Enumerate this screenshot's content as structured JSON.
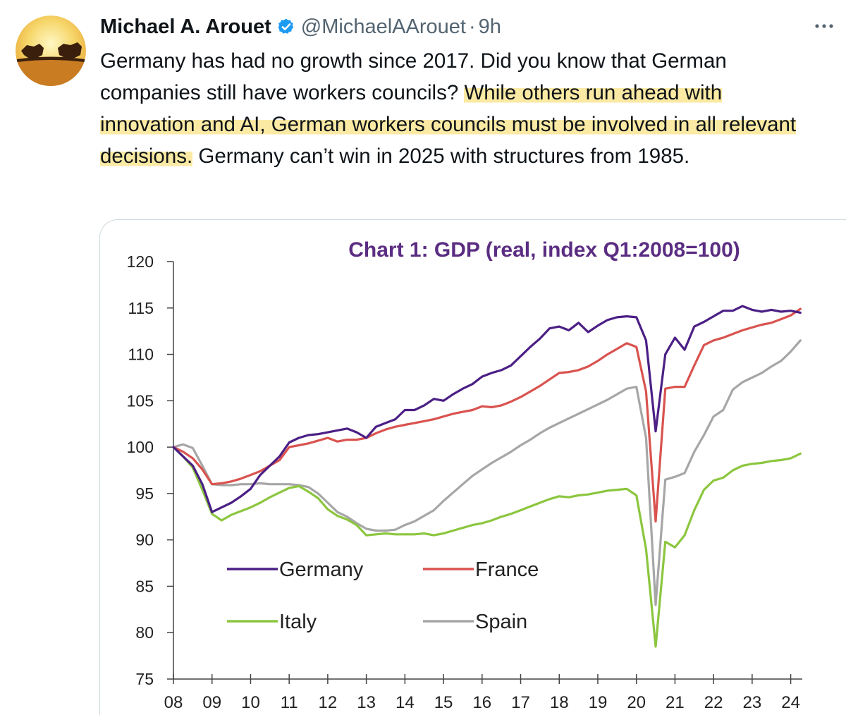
{
  "tweet": {
    "author_name": "Michael A. Arouet",
    "handle": "@MichaelAArouet",
    "separator": "·",
    "time": "9h",
    "text_part1": "Germany has had no growth since 2017. Did you know that German companies still have workers councils? ",
    "text_highlight": "While others run ahead with innovation and AI, German workers councils must be involved in all relevant decisions.",
    "text_part2": " Germany can’t win in 2025 with structures from 1985."
  },
  "icons": {
    "avatar": "bull-and-bear-avatar",
    "verified": "verified-badge-icon",
    "more": "more-options-icon"
  },
  "colors": {
    "verified": "#1d9bf0",
    "highlight": "#fbeaa4",
    "chart_title": "#5b2d82"
  },
  "chart_data": {
    "type": "line",
    "title": "Chart 1: GDP (real, index Q1:2008=100)",
    "xlabel": "",
    "ylabel": "",
    "ylim": [
      75,
      120
    ],
    "yticks": [
      120,
      115,
      110,
      105,
      100,
      95,
      90,
      85,
      80,
      75
    ],
    "xticks": [
      "08",
      "09",
      "10",
      "11",
      "12",
      "13",
      "14",
      "15",
      "16",
      "17",
      "18",
      "19",
      "20",
      "21",
      "22",
      "23",
      "24"
    ],
    "grid": false,
    "legend": "inside-lower-left",
    "series": [
      {
        "name": "Germany",
        "color": "#4b1f85",
        "points": [
          [
            2008.0,
            100
          ],
          [
            2008.25,
            99
          ],
          [
            2008.5,
            98
          ],
          [
            2008.75,
            96
          ],
          [
            2009.0,
            93
          ],
          [
            2009.25,
            93.5
          ],
          [
            2009.5,
            94
          ],
          [
            2009.75,
            94.7
          ],
          [
            2010.0,
            95.5
          ],
          [
            2010.25,
            97
          ],
          [
            2010.5,
            98
          ],
          [
            2010.75,
            99
          ],
          [
            2011.0,
            100.5
          ],
          [
            2011.25,
            101
          ],
          [
            2011.5,
            101.3
          ],
          [
            2011.75,
            101.4
          ],
          [
            2012.0,
            101.6
          ],
          [
            2012.25,
            101.8
          ],
          [
            2012.5,
            102
          ],
          [
            2012.75,
            101.6
          ],
          [
            2013.0,
            101
          ],
          [
            2013.25,
            102.2
          ],
          [
            2013.5,
            102.6
          ],
          [
            2013.75,
            103
          ],
          [
            2014.0,
            104
          ],
          [
            2014.25,
            104
          ],
          [
            2014.5,
            104.5
          ],
          [
            2014.75,
            105.2
          ],
          [
            2015.0,
            105
          ],
          [
            2015.25,
            105.7
          ],
          [
            2015.5,
            106.3
          ],
          [
            2015.75,
            106.8
          ],
          [
            2016.0,
            107.6
          ],
          [
            2016.25,
            108
          ],
          [
            2016.5,
            108.3
          ],
          [
            2016.75,
            108.8
          ],
          [
            2017.0,
            109.8
          ],
          [
            2017.25,
            110.8
          ],
          [
            2017.5,
            111.7
          ],
          [
            2017.75,
            112.8
          ],
          [
            2018.0,
            113
          ],
          [
            2018.25,
            112.6
          ],
          [
            2018.5,
            113.4
          ],
          [
            2018.75,
            112.4
          ],
          [
            2019.0,
            113.1
          ],
          [
            2019.25,
            113.7
          ],
          [
            2019.5,
            114
          ],
          [
            2019.75,
            114.1
          ],
          [
            2020.0,
            114
          ],
          [
            2020.25,
            111.5
          ],
          [
            2020.5,
            101.7
          ],
          [
            2020.75,
            110
          ],
          [
            2021.0,
            111.8
          ],
          [
            2021.25,
            110.5
          ],
          [
            2021.5,
            113
          ],
          [
            2021.75,
            113.5
          ],
          [
            2022.0,
            114.1
          ],
          [
            2022.25,
            114.7
          ],
          [
            2022.5,
            114.7
          ],
          [
            2022.75,
            115.2
          ],
          [
            2023.0,
            114.8
          ],
          [
            2023.25,
            114.6
          ],
          [
            2023.5,
            114.8
          ],
          [
            2023.75,
            114.6
          ],
          [
            2024.0,
            114.7
          ],
          [
            2024.25,
            114.5
          ]
        ]
      },
      {
        "name": "France",
        "color": "#d9534f",
        "points": [
          [
            2008.0,
            100
          ],
          [
            2008.25,
            99.5
          ],
          [
            2008.5,
            98.8
          ],
          [
            2008.75,
            97.6
          ],
          [
            2009.0,
            96
          ],
          [
            2009.25,
            96.1
          ],
          [
            2009.5,
            96.3
          ],
          [
            2009.75,
            96.6
          ],
          [
            2010.0,
            97
          ],
          [
            2010.25,
            97.4
          ],
          [
            2010.5,
            98
          ],
          [
            2010.75,
            98.6
          ],
          [
            2011.0,
            100
          ],
          [
            2011.25,
            100.2
          ],
          [
            2011.5,
            100.4
          ],
          [
            2011.75,
            100.7
          ],
          [
            2012.0,
            101
          ],
          [
            2012.25,
            100.6
          ],
          [
            2012.5,
            100.8
          ],
          [
            2012.75,
            100.8
          ],
          [
            2013.0,
            101
          ],
          [
            2013.25,
            101.5
          ],
          [
            2013.5,
            101.9
          ],
          [
            2013.75,
            102.2
          ],
          [
            2014.0,
            102.4
          ],
          [
            2014.25,
            102.6
          ],
          [
            2014.5,
            102.8
          ],
          [
            2014.75,
            103
          ],
          [
            2015.0,
            103.3
          ],
          [
            2015.25,
            103.6
          ],
          [
            2015.5,
            103.8
          ],
          [
            2015.75,
            104
          ],
          [
            2016.0,
            104.4
          ],
          [
            2016.25,
            104.3
          ],
          [
            2016.5,
            104.5
          ],
          [
            2016.75,
            104.9
          ],
          [
            2017.0,
            105.4
          ],
          [
            2017.25,
            106
          ],
          [
            2017.5,
            106.6
          ],
          [
            2017.75,
            107.3
          ],
          [
            2018.0,
            108
          ],
          [
            2018.25,
            108.1
          ],
          [
            2018.5,
            108.3
          ],
          [
            2018.75,
            108.7
          ],
          [
            2019.0,
            109.3
          ],
          [
            2019.25,
            110
          ],
          [
            2019.5,
            110.6
          ],
          [
            2019.75,
            111.2
          ],
          [
            2020.0,
            110.8
          ],
          [
            2020.25,
            106
          ],
          [
            2020.5,
            92
          ],
          [
            2020.75,
            106.3
          ],
          [
            2021.0,
            106.5
          ],
          [
            2021.25,
            106.5
          ],
          [
            2021.5,
            108.8
          ],
          [
            2021.75,
            111
          ],
          [
            2022.0,
            111.5
          ],
          [
            2022.25,
            111.8
          ],
          [
            2022.5,
            112.2
          ],
          [
            2022.75,
            112.6
          ],
          [
            2023.0,
            112.9
          ],
          [
            2023.25,
            113.2
          ],
          [
            2023.5,
            113.4
          ],
          [
            2023.75,
            113.8
          ],
          [
            2024.0,
            114.2
          ],
          [
            2024.25,
            114.9
          ]
        ]
      },
      {
        "name": "Italy",
        "color": "#8cc63f",
        "points": [
          [
            2008.0,
            100
          ],
          [
            2008.25,
            99
          ],
          [
            2008.5,
            97.8
          ],
          [
            2008.75,
            95.4
          ],
          [
            2009.0,
            92.8
          ],
          [
            2009.25,
            92.1
          ],
          [
            2009.5,
            92.7
          ],
          [
            2009.75,
            93.1
          ],
          [
            2010.0,
            93.5
          ],
          [
            2010.25,
            94
          ],
          [
            2010.5,
            94.6
          ],
          [
            2010.75,
            95.1
          ],
          [
            2011.0,
            95.6
          ],
          [
            2011.25,
            95.8
          ],
          [
            2011.5,
            95.2
          ],
          [
            2011.75,
            94.5
          ],
          [
            2012.0,
            93.3
          ],
          [
            2012.25,
            92.6
          ],
          [
            2012.5,
            92.2
          ],
          [
            2012.75,
            91.6
          ],
          [
            2013.0,
            90.5
          ],
          [
            2013.25,
            90.6
          ],
          [
            2013.5,
            90.7
          ],
          [
            2013.75,
            90.6
          ],
          [
            2014.0,
            90.6
          ],
          [
            2014.25,
            90.6
          ],
          [
            2014.5,
            90.7
          ],
          [
            2014.75,
            90.5
          ],
          [
            2015.0,
            90.7
          ],
          [
            2015.25,
            91
          ],
          [
            2015.5,
            91.3
          ],
          [
            2015.75,
            91.6
          ],
          [
            2016.0,
            91.8
          ],
          [
            2016.25,
            92.1
          ],
          [
            2016.5,
            92.5
          ],
          [
            2016.75,
            92.8
          ],
          [
            2017.0,
            93.2
          ],
          [
            2017.25,
            93.6
          ],
          [
            2017.5,
            94
          ],
          [
            2017.75,
            94.4
          ],
          [
            2018.0,
            94.7
          ],
          [
            2018.25,
            94.6
          ],
          [
            2018.5,
            94.8
          ],
          [
            2018.75,
            94.9
          ],
          [
            2019.0,
            95.1
          ],
          [
            2019.25,
            95.3
          ],
          [
            2019.5,
            95.4
          ],
          [
            2019.75,
            95.5
          ],
          [
            2020.0,
            94.8
          ],
          [
            2020.25,
            89
          ],
          [
            2020.5,
            78.5
          ],
          [
            2020.75,
            89.8
          ],
          [
            2021.0,
            89.2
          ],
          [
            2021.25,
            90.5
          ],
          [
            2021.5,
            93.2
          ],
          [
            2021.75,
            95.4
          ],
          [
            2022.0,
            96.4
          ],
          [
            2022.25,
            96.7
          ],
          [
            2022.5,
            97.5
          ],
          [
            2022.75,
            98
          ],
          [
            2023.0,
            98.2
          ],
          [
            2023.25,
            98.3
          ],
          [
            2023.5,
            98.5
          ],
          [
            2023.75,
            98.6
          ],
          [
            2024.0,
            98.8
          ],
          [
            2024.25,
            99.3
          ]
        ]
      },
      {
        "name": "Spain",
        "color": "#a6a6a6",
        "points": [
          [
            2008.0,
            100
          ],
          [
            2008.25,
            100.3
          ],
          [
            2008.5,
            99.9
          ],
          [
            2008.75,
            98
          ],
          [
            2009.0,
            96
          ],
          [
            2009.25,
            95.9
          ],
          [
            2009.5,
            95.9
          ],
          [
            2009.75,
            96
          ],
          [
            2010.0,
            96
          ],
          [
            2010.25,
            96.1
          ],
          [
            2010.5,
            96
          ],
          [
            2010.75,
            96
          ],
          [
            2011.0,
            96
          ],
          [
            2011.25,
            95.9
          ],
          [
            2011.5,
            95.7
          ],
          [
            2011.75,
            95
          ],
          [
            2012.0,
            94
          ],
          [
            2012.25,
            93
          ],
          [
            2012.5,
            92.5
          ],
          [
            2012.75,
            91.8
          ],
          [
            2013.0,
            91.2
          ],
          [
            2013.25,
            91
          ],
          [
            2013.5,
            91
          ],
          [
            2013.75,
            91.1
          ],
          [
            2014.0,
            91.6
          ],
          [
            2014.25,
            92
          ],
          [
            2014.5,
            92.6
          ],
          [
            2014.75,
            93.2
          ],
          [
            2015.0,
            94.2
          ],
          [
            2015.25,
            95.1
          ],
          [
            2015.5,
            96
          ],
          [
            2015.75,
            96.9
          ],
          [
            2016.0,
            97.6
          ],
          [
            2016.25,
            98.3
          ],
          [
            2016.5,
            98.9
          ],
          [
            2016.75,
            99.5
          ],
          [
            2017.0,
            100.2
          ],
          [
            2017.25,
            100.8
          ],
          [
            2017.5,
            101.5
          ],
          [
            2017.75,
            102.1
          ],
          [
            2018.0,
            102.6
          ],
          [
            2018.25,
            103.1
          ],
          [
            2018.5,
            103.6
          ],
          [
            2018.75,
            104.1
          ],
          [
            2019.0,
            104.6
          ],
          [
            2019.25,
            105.1
          ],
          [
            2019.5,
            105.7
          ],
          [
            2019.75,
            106.3
          ],
          [
            2020.0,
            106.5
          ],
          [
            2020.25,
            101
          ],
          [
            2020.5,
            83
          ],
          [
            2020.75,
            96.5
          ],
          [
            2021.0,
            96.8
          ],
          [
            2021.25,
            97.2
          ],
          [
            2021.5,
            99.5
          ],
          [
            2021.75,
            101.3
          ],
          [
            2022.0,
            103.3
          ],
          [
            2022.25,
            104
          ],
          [
            2022.5,
            106.2
          ],
          [
            2022.75,
            107
          ],
          [
            2023.0,
            107.5
          ],
          [
            2023.25,
            108
          ],
          [
            2023.5,
            108.7
          ],
          [
            2023.75,
            109.3
          ],
          [
            2024.0,
            110.3
          ],
          [
            2024.25,
            111.5
          ]
        ]
      }
    ]
  }
}
